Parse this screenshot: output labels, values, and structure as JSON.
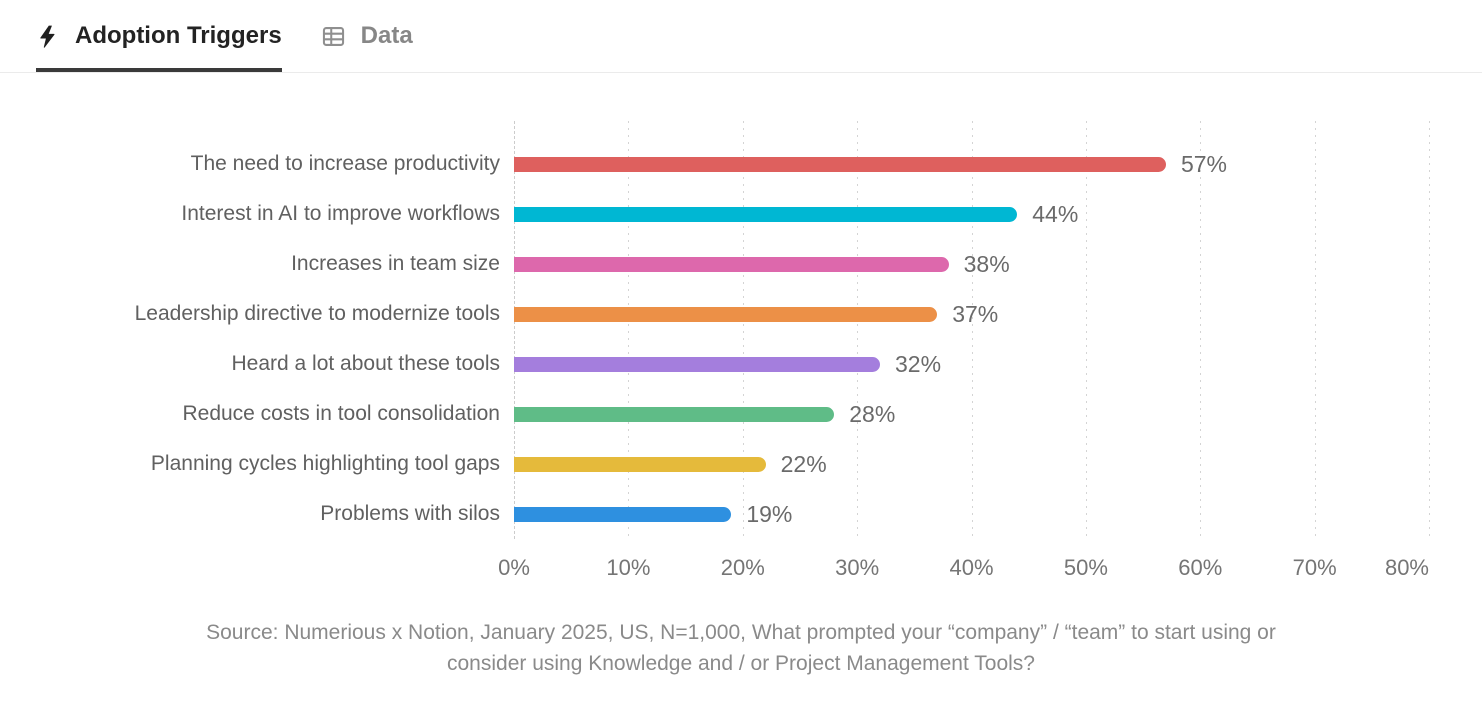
{
  "tabs": {
    "adoption_triggers": {
      "label": "Adoption Triggers"
    },
    "data": {
      "label": "Data"
    }
  },
  "chart_data": {
    "type": "bar",
    "orientation": "horizontal",
    "title": "Adoption Triggers",
    "categories": [
      "The need to increase productivity",
      "Interest in AI to improve workflows",
      "Increases in team size",
      "Leadership directive to modernize tools",
      "Heard a lot about these tools",
      "Reduce costs in tool consolidation",
      "Planning cycles highlighting tool gaps",
      "Problems with silos"
    ],
    "values": [
      57,
      44,
      38,
      37,
      32,
      28,
      22,
      19
    ],
    "value_labels": [
      "57%",
      "44%",
      "38%",
      "37%",
      "32%",
      "28%",
      "22%",
      "19%"
    ],
    "bar_colors": [
      "#DE605E",
      "#00B7D3",
      "#DD68AC",
      "#EC9047",
      "#A47EDD",
      "#5FBC87",
      "#E5BA3B",
      "#2E90E0"
    ],
    "xlim": [
      0,
      80
    ],
    "x_ticks": [
      "0%",
      "10%",
      "20%",
      "30%",
      "40%",
      "50%",
      "60%",
      "70%",
      "80%"
    ],
    "grid": "dotted vertical gridlines",
    "legend": "none"
  },
  "source": {
    "line1": "Source: Numerious x Notion, January 2025, US, N=1,000, What prompted your “company” / “team” to start using or",
    "line2": "consider using Knowledge and / or Project Management Tools?"
  },
  "colors": {
    "active_tab_text": "#232323",
    "active_tab_underline": "#3a3a3a",
    "inactive_tab_text": "#878787",
    "gridline": "#d4d4d4",
    "label_text": "#606060",
    "value_text": "#6a6a6a",
    "source_text": "#8a8a8a"
  }
}
